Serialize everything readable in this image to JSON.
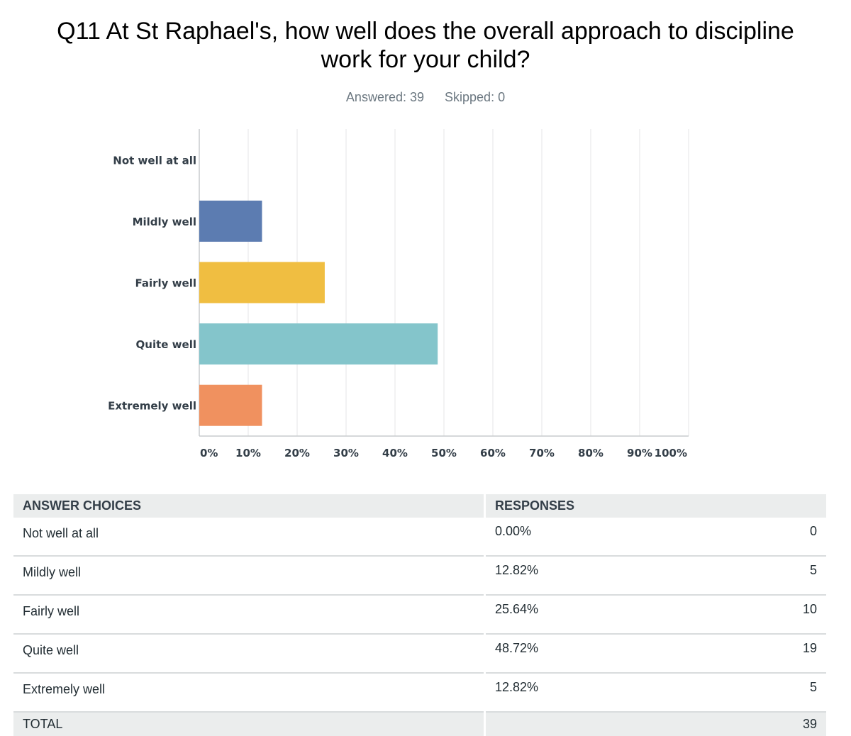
{
  "title": "Q11 At St Raphael's, how well does the overall approach to discipline work for your child?",
  "stats": {
    "answered": "Answered: 39",
    "skipped": "Skipped: 0"
  },
  "chart_data": {
    "type": "bar",
    "orientation": "horizontal",
    "categories": [
      "Not well at all",
      "Mildly well",
      "Fairly well",
      "Quite well",
      "Extremely well"
    ],
    "values": [
      0.0,
      12.82,
      25.64,
      48.72,
      12.82
    ],
    "colors": [
      "#7d5da5",
      "#5c7cb1",
      "#f0be41",
      "#84c5cb",
      "#f0915f"
    ],
    "xlim": [
      0,
      100
    ],
    "xticks": [
      "0%",
      "10%",
      "20%",
      "30%",
      "40%",
      "50%",
      "60%",
      "70%",
      "80%",
      "90%",
      "100%"
    ],
    "grid": true,
    "legend": "none"
  },
  "table": {
    "headers": [
      "ANSWER CHOICES",
      "RESPONSES"
    ],
    "rows": [
      {
        "choice": "Not well at all",
        "percent": "0.00%",
        "count": "0"
      },
      {
        "choice": "Mildly well",
        "percent": "12.82%",
        "count": "5"
      },
      {
        "choice": "Fairly well",
        "percent": "25.64%",
        "count": "10"
      },
      {
        "choice": "Quite well",
        "percent": "48.72%",
        "count": "19"
      },
      {
        "choice": "Extremely well",
        "percent": "12.82%",
        "count": "5"
      }
    ],
    "total_label": "TOTAL",
    "total_count": "39"
  }
}
